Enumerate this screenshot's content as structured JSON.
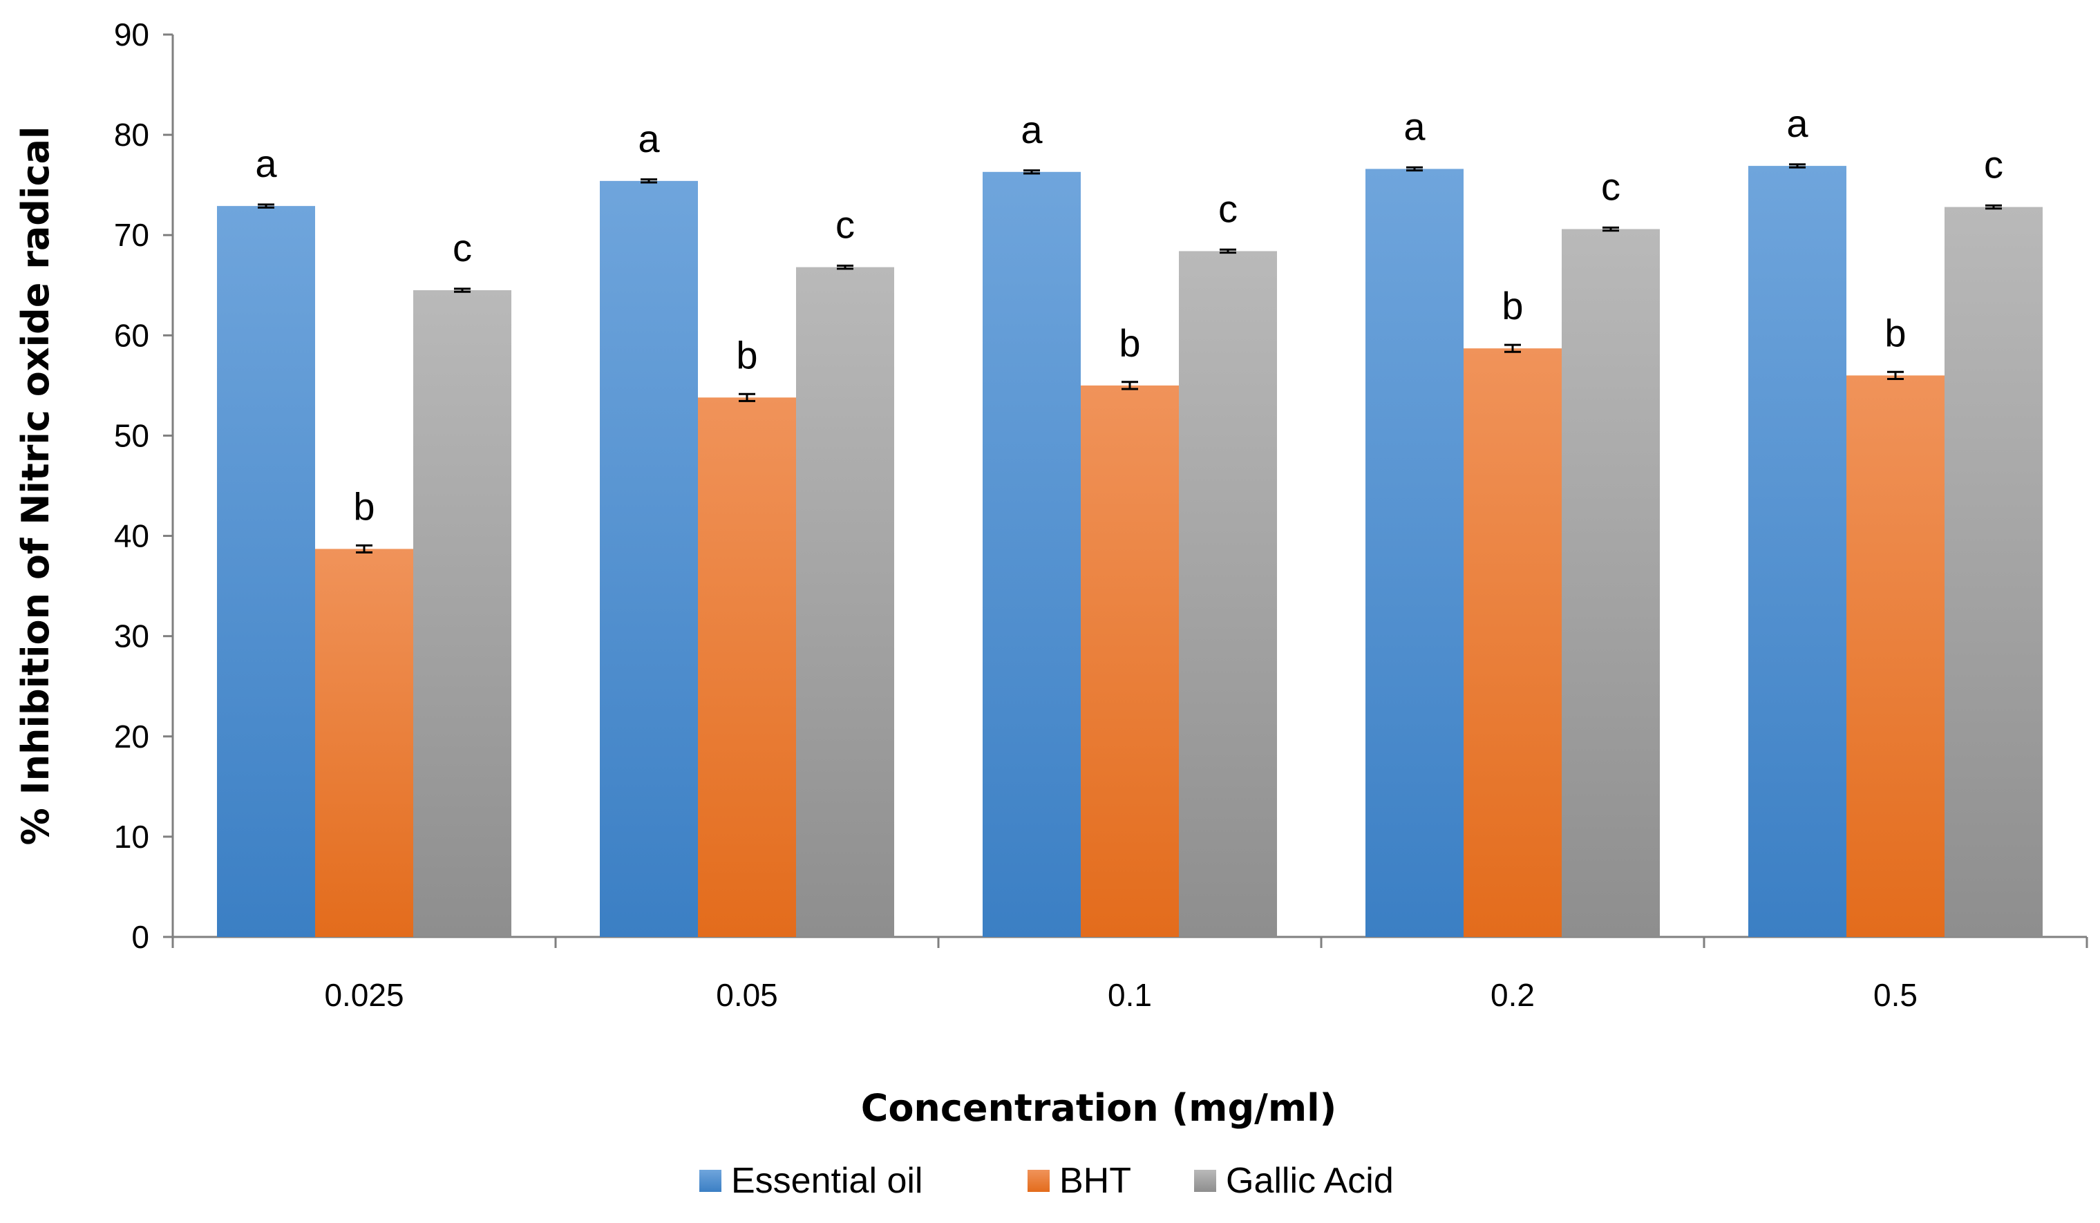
{
  "chart_data": {
    "type": "bar",
    "title": "",
    "xlabel": "Concentration (mg/ml)",
    "ylabel": "% Inhibition of Nitric oxide radical",
    "categories": [
      "0.025",
      "0.05",
      "0.1",
      "0.2",
      "0.5"
    ],
    "ylim": [
      0,
      90
    ],
    "yticks": [
      "0",
      "10",
      "20",
      "30",
      "40",
      "50",
      "60",
      "70",
      "80",
      "90"
    ],
    "grid": false,
    "legend_position": "bottom",
    "series": [
      {
        "name": "Essential oil",
        "color": "#4A8FD6",
        "values": [
          72.9,
          75.4,
          76.3,
          76.6,
          76.9
        ],
        "errors": [
          0.15,
          0.15,
          0.15,
          0.15,
          0.15
        ],
        "labels": [
          "a",
          "a",
          "a",
          "a",
          "a"
        ]
      },
      {
        "name": "BHT",
        "color": "#EF7C2C",
        "values": [
          38.7,
          53.8,
          55.0,
          58.7,
          56.0
        ],
        "errors": [
          0.35,
          0.35,
          0.35,
          0.35,
          0.35
        ],
        "labels": [
          "b",
          "b",
          "b",
          "b",
          "b"
        ]
      },
      {
        "name": "Gallic Acid",
        "color": "#A5A5A5",
        "values": [
          64.5,
          66.8,
          68.4,
          70.6,
          72.8
        ],
        "errors": [
          0.15,
          0.15,
          0.15,
          0.15,
          0.15
        ],
        "labels": [
          "c",
          "c",
          "c",
          "c",
          "c"
        ]
      }
    ]
  }
}
